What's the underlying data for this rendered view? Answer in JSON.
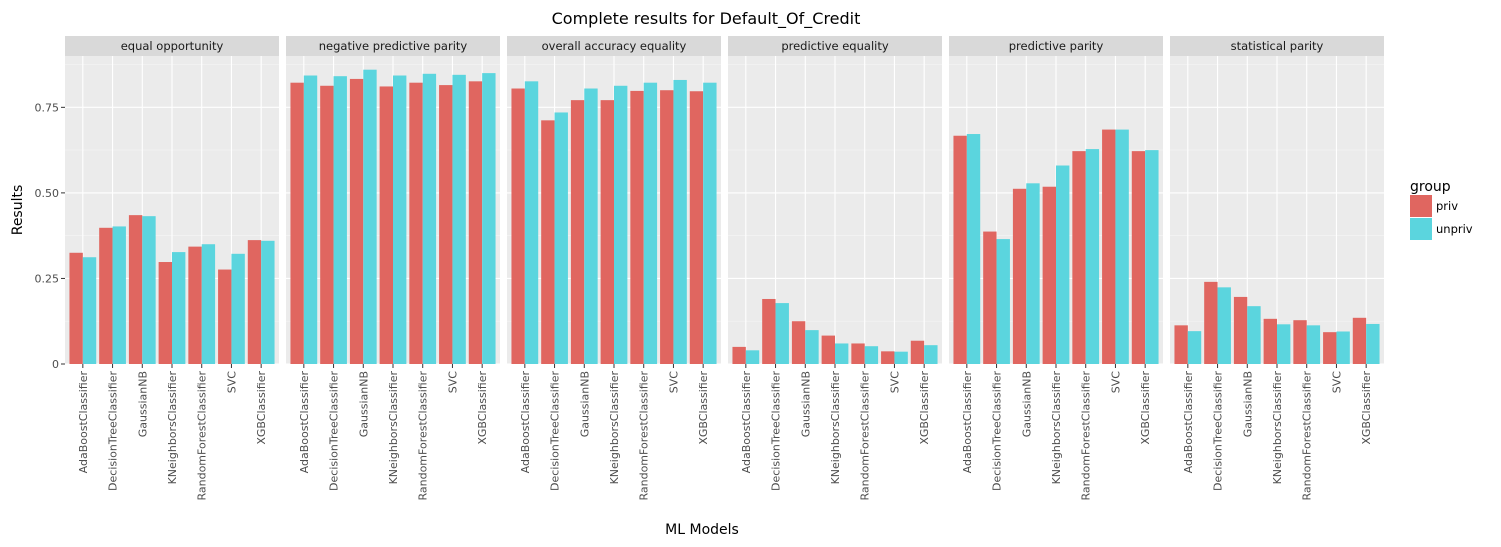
{
  "chart_data": {
    "type": "bar",
    "title": "Complete results for Default_Of_Credit",
    "xlabel": "ML Models",
    "ylabel": "Results",
    "ylim": [
      0,
      0.9
    ],
    "yticks": [
      0,
      0.25,
      0.5,
      0.75
    ],
    "ytick_labels": [
      "0",
      "0.25",
      "0.50",
      "0.75"
    ],
    "grid": true,
    "legend_position": "right",
    "legend_title": "group",
    "categories": [
      "AdaBoostClassifier",
      "DecisionTreeClassifier",
      "GaussianNB",
      "KNeighborsClassifier",
      "RandomForestClassifier",
      "SVC",
      "XGBClassifier"
    ],
    "series_styles": [
      {
        "name": "priv",
        "color": "#e06660"
      },
      {
        "name": "unpriv",
        "color": "#5bd5de"
      }
    ],
    "facets": [
      {
        "label": "equal opportunity",
        "series": [
          {
            "name": "priv",
            "values": [
              0.325,
              0.398,
              0.435,
              0.298,
              0.343,
              0.276,
              0.362
            ]
          },
          {
            "name": "unpriv",
            "values": [
              0.312,
              0.402,
              0.432,
              0.327,
              0.35,
              0.322,
              0.36
            ]
          }
        ]
      },
      {
        "label": "negative predictive parity",
        "series": [
          {
            "name": "priv",
            "values": [
              0.822,
              0.813,
              0.833,
              0.811,
              0.822,
              0.815,
              0.826
            ]
          },
          {
            "name": "unpriv",
            "values": [
              0.843,
              0.841,
              0.86,
              0.843,
              0.848,
              0.845,
              0.85
            ]
          }
        ]
      },
      {
        "label": "overall accuracy equality",
        "series": [
          {
            "name": "priv",
            "values": [
              0.805,
              0.712,
              0.771,
              0.771,
              0.798,
              0.8,
              0.797
            ]
          },
          {
            "name": "unpriv",
            "values": [
              0.826,
              0.735,
              0.805,
              0.813,
              0.822,
              0.83,
              0.822
            ]
          }
        ]
      },
      {
        "label": "predictive equality",
        "series": [
          {
            "name": "priv",
            "values": [
              0.05,
              0.19,
              0.125,
              0.083,
              0.06,
              0.037,
              0.068
            ]
          },
          {
            "name": "unpriv",
            "values": [
              0.04,
              0.178,
              0.099,
              0.06,
              0.052,
              0.036,
              0.055
            ]
          }
        ]
      },
      {
        "label": "predictive parity",
        "series": [
          {
            "name": "priv",
            "values": [
              0.667,
              0.387,
              0.512,
              0.518,
              0.622,
              0.685,
              0.622
            ]
          },
          {
            "name": "unpriv",
            "values": [
              0.672,
              0.365,
              0.528,
              0.58,
              0.628,
              0.685,
              0.625
            ]
          }
        ]
      },
      {
        "label": "statistical parity",
        "series": [
          {
            "name": "priv",
            "values": [
              0.113,
              0.24,
              0.196,
              0.132,
              0.128,
              0.093,
              0.135
            ]
          },
          {
            "name": "unpriv",
            "values": [
              0.096,
              0.224,
              0.169,
              0.116,
              0.113,
              0.095,
              0.117
            ]
          }
        ]
      }
    ]
  }
}
